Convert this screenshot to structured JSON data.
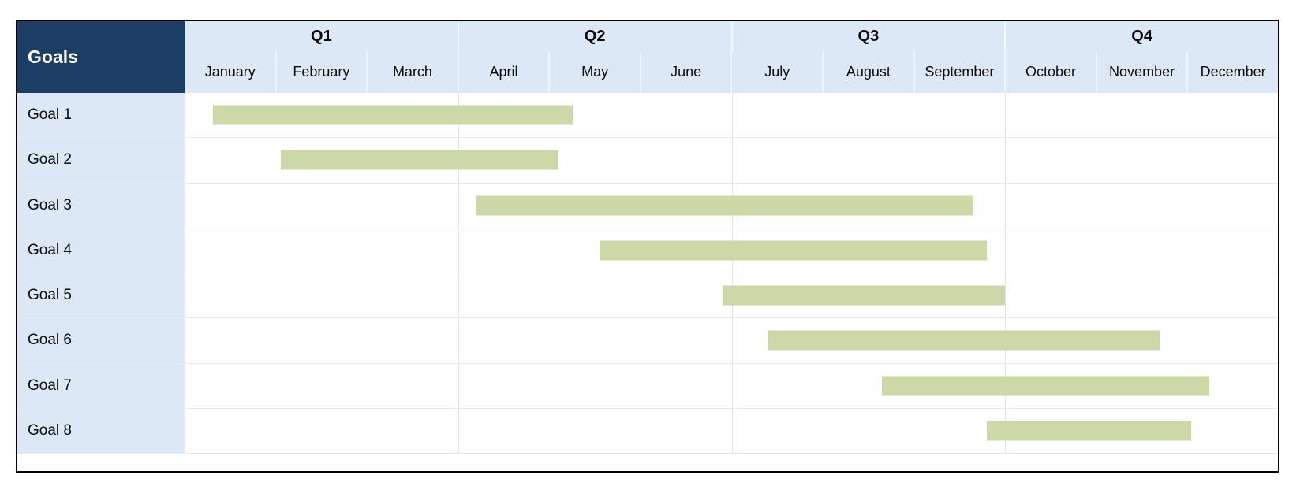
{
  "header": {
    "corner_label": "Goals"
  },
  "colors": {
    "corner_background": "#1c3e64",
    "corner_text": "#ffffff",
    "header_fill": "#dce8f5",
    "row_label_fill": "#dce8f5",
    "bar_fill": "#cdd8a9",
    "table_border": "#000000",
    "gridline": "#e8eaec"
  },
  "chart_data": {
    "type": "bar",
    "subtype": "gantt",
    "orientation": "horizontal",
    "title": "Goals",
    "x_unit": "months (0 = start of January, 12 = end of December)",
    "x_range": [
      0,
      12
    ],
    "quarters": [
      "Q1",
      "Q2",
      "Q3",
      "Q4"
    ],
    "months": [
      "January",
      "February",
      "March",
      "April",
      "May",
      "June",
      "July",
      "August",
      "September",
      "October",
      "November",
      "December"
    ],
    "categories": [
      "Goal 1",
      "Goal 2",
      "Goal 3",
      "Goal 4",
      "Goal 5",
      "Goal 6",
      "Goal 7",
      "Goal 8"
    ],
    "series": [
      {
        "name": "Goal 1",
        "start": 0.3,
        "end": 4.25,
        "start_label": "mid-January",
        "end_label": "early May"
      },
      {
        "name": "Goal 2",
        "start": 1.05,
        "end": 4.1,
        "start_label": "early February",
        "end_label": "early May"
      },
      {
        "name": "Goal 3",
        "start": 3.2,
        "end": 8.65,
        "start_label": "early April",
        "end_label": "late September"
      },
      {
        "name": "Goal 4",
        "start": 4.55,
        "end": 8.8,
        "start_label": "mid-May",
        "end_label": "late September"
      },
      {
        "name": "Goal 5",
        "start": 5.9,
        "end": 9.0,
        "start_label": "end of June",
        "end_label": "end of September"
      },
      {
        "name": "Goal 6",
        "start": 6.4,
        "end": 10.7,
        "start_label": "mid-July",
        "end_label": "late November"
      },
      {
        "name": "Goal 7",
        "start": 7.65,
        "end": 11.25,
        "start_label": "late August",
        "end_label": "early December"
      },
      {
        "name": "Goal 8",
        "start": 8.8,
        "end": 11.05,
        "start_label": "late September",
        "end_label": "early December"
      }
    ],
    "grid": "vertical lines at quarter boundaries, horizontal lines between rows",
    "legend": "none"
  }
}
